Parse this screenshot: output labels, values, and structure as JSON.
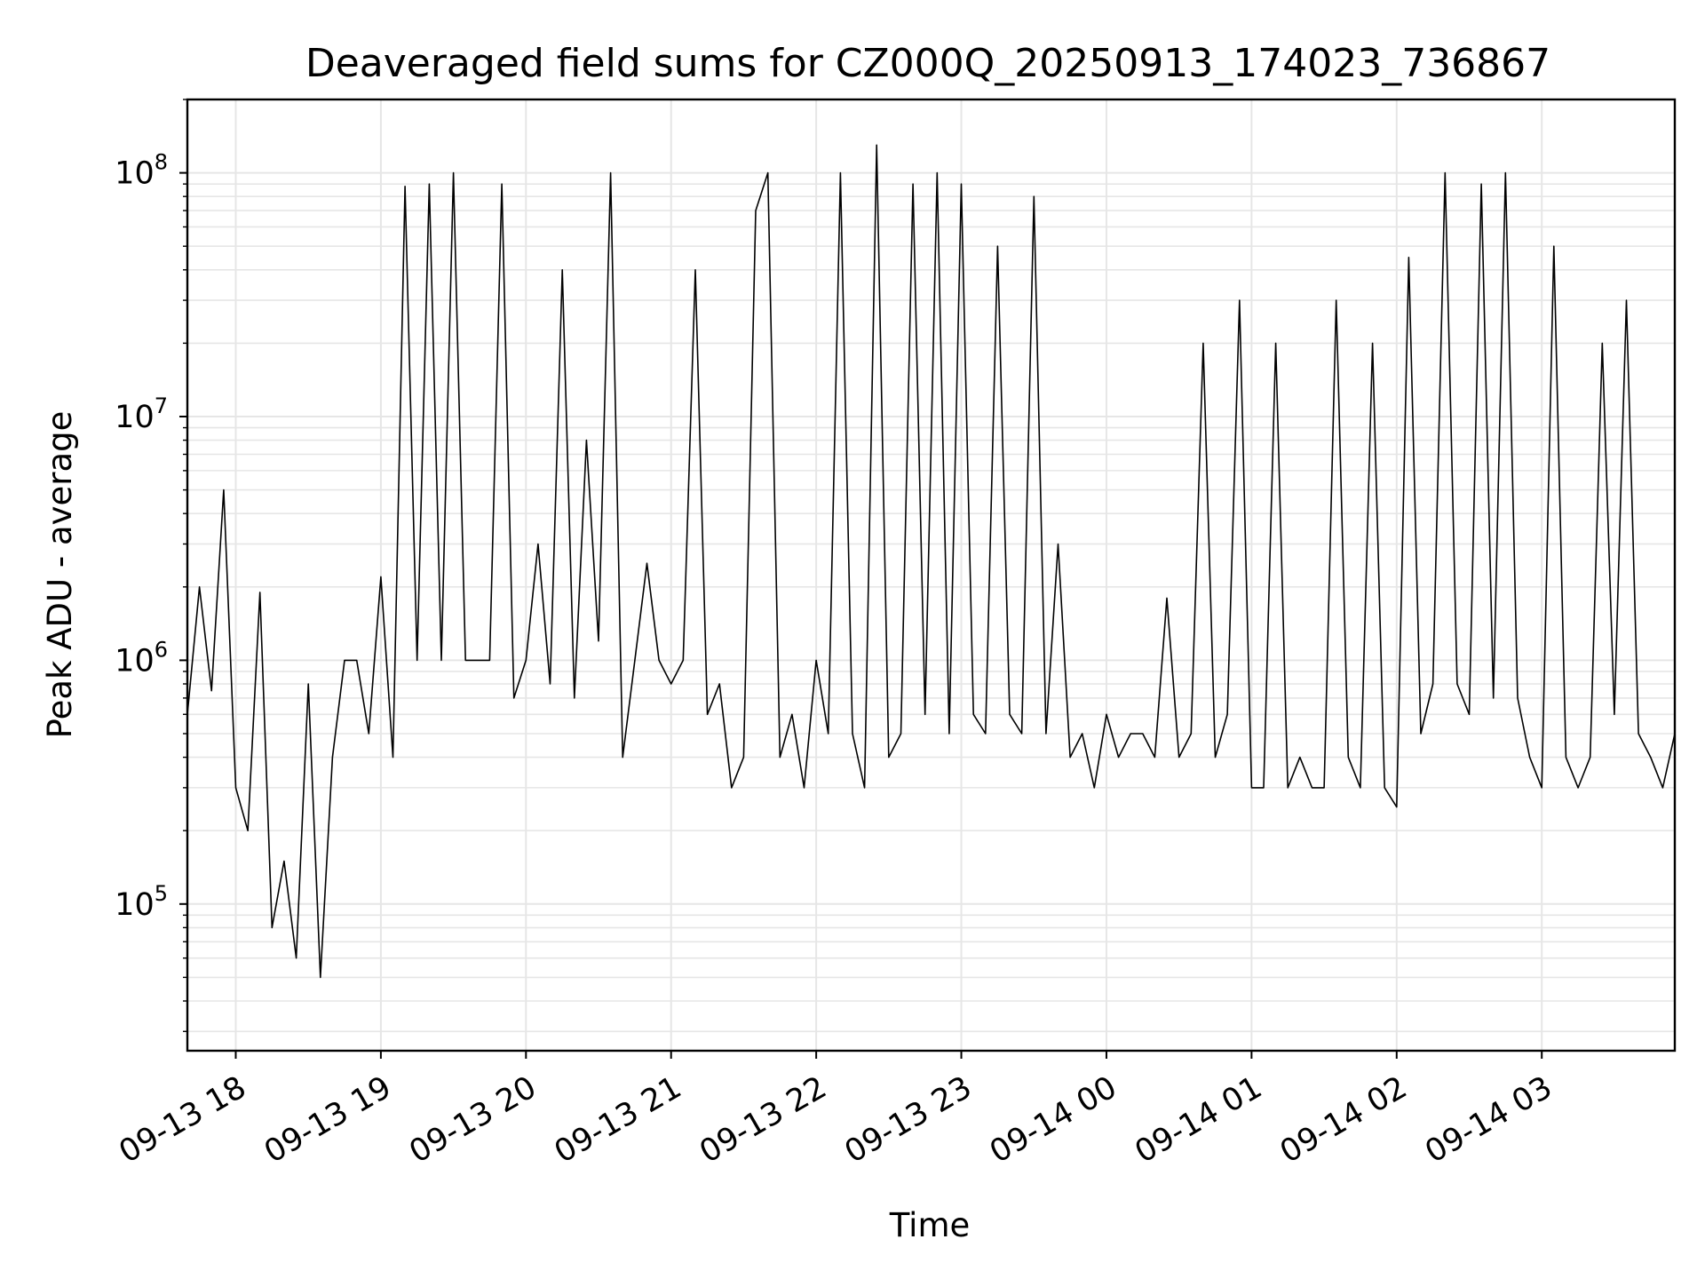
{
  "chart_data": {
    "type": "line",
    "title": "Deaveraged field sums for CZ000Q_20250913_174023_736867",
    "xlabel": "Time",
    "ylabel": "Peak ADU - average",
    "yscale": "log",
    "ylim": [
      25000,
      200000000
    ],
    "xlim": [
      "2025-09-13 17:40",
      "2025-09-14 03:55"
    ],
    "grid": true,
    "line_color": "#000000",
    "grid_color": "#e6e6e6",
    "x_ticks": [
      {
        "value": "2025-09-13 18:00",
        "label": "09-13 18"
      },
      {
        "value": "2025-09-13 19:00",
        "label": "09-13 19"
      },
      {
        "value": "2025-09-13 20:00",
        "label": "09-13 20"
      },
      {
        "value": "2025-09-13 21:00",
        "label": "09-13 21"
      },
      {
        "value": "2025-09-13 22:00",
        "label": "09-13 22"
      },
      {
        "value": "2025-09-13 23:00",
        "label": "09-13 23"
      },
      {
        "value": "2025-09-14 00:00",
        "label": "09-14 00"
      },
      {
        "value": "2025-09-14 01:00",
        "label": "09-14 01"
      },
      {
        "value": "2025-09-14 02:00",
        "label": "09-14 02"
      },
      {
        "value": "2025-09-14 03:00",
        "label": "09-14 03"
      }
    ],
    "y_ticks": [
      {
        "value": 100000,
        "base": "10",
        "exp": "5"
      },
      {
        "value": 1000000,
        "base": "10",
        "exp": "6"
      },
      {
        "value": 10000000,
        "base": "10",
        "exp": "7"
      },
      {
        "value": 100000000,
        "base": "10",
        "exp": "8"
      }
    ],
    "series": [
      {
        "x": [
          "2025-09-13 17:40",
          "2025-09-13 17:45",
          "2025-09-13 17:50",
          "2025-09-13 17:55",
          "2025-09-13 18:00",
          "2025-09-13 18:05",
          "2025-09-13 18:10",
          "2025-09-13 18:15",
          "2025-09-13 18:20",
          "2025-09-13 18:25",
          "2025-09-13 18:30",
          "2025-09-13 18:35",
          "2025-09-13 18:40",
          "2025-09-13 18:45",
          "2025-09-13 18:50",
          "2025-09-13 18:55",
          "2025-09-13 19:00",
          "2025-09-13 19:05",
          "2025-09-13 19:10",
          "2025-09-13 19:15",
          "2025-09-13 19:20",
          "2025-09-13 19:25",
          "2025-09-13 19:30",
          "2025-09-13 19:35",
          "2025-09-13 19:40",
          "2025-09-13 19:45",
          "2025-09-13 19:50",
          "2025-09-13 19:55",
          "2025-09-13 20:00",
          "2025-09-13 20:05",
          "2025-09-13 20:10",
          "2025-09-13 20:15",
          "2025-09-13 20:20",
          "2025-09-13 20:25",
          "2025-09-13 20:30",
          "2025-09-13 20:35",
          "2025-09-13 20:40",
          "2025-09-13 20:45",
          "2025-09-13 20:50",
          "2025-09-13 20:55",
          "2025-09-13 21:00",
          "2025-09-13 21:05",
          "2025-09-13 21:10",
          "2025-09-13 21:15",
          "2025-09-13 21:20",
          "2025-09-13 21:25",
          "2025-09-13 21:30",
          "2025-09-13 21:35",
          "2025-09-13 21:40",
          "2025-09-13 21:45",
          "2025-09-13 21:50",
          "2025-09-13 21:55",
          "2025-09-13 22:00",
          "2025-09-13 22:05",
          "2025-09-13 22:10",
          "2025-09-13 22:15",
          "2025-09-13 22:20",
          "2025-09-13 22:25",
          "2025-09-13 22:30",
          "2025-09-13 22:35",
          "2025-09-13 22:40",
          "2025-09-13 22:45",
          "2025-09-13 22:50",
          "2025-09-13 22:55",
          "2025-09-13 23:00",
          "2025-09-13 23:05",
          "2025-09-13 23:10",
          "2025-09-13 23:15",
          "2025-09-13 23:20",
          "2025-09-13 23:25",
          "2025-09-13 23:30",
          "2025-09-13 23:35",
          "2025-09-13 23:40",
          "2025-09-13 23:45",
          "2025-09-13 23:50",
          "2025-09-13 23:55",
          "2025-09-14 00:00",
          "2025-09-14 00:05",
          "2025-09-14 00:10",
          "2025-09-14 00:15",
          "2025-09-14 00:20",
          "2025-09-14 00:25",
          "2025-09-14 00:30",
          "2025-09-14 00:35",
          "2025-09-14 00:40",
          "2025-09-14 00:45",
          "2025-09-14 00:50",
          "2025-09-14 00:55",
          "2025-09-14 01:00",
          "2025-09-14 01:05",
          "2025-09-14 01:10",
          "2025-09-14 01:15",
          "2025-09-14 01:20",
          "2025-09-14 01:25",
          "2025-09-14 01:30",
          "2025-09-14 01:35",
          "2025-09-14 01:40",
          "2025-09-14 01:45",
          "2025-09-14 01:50",
          "2025-09-14 01:55",
          "2025-09-14 02:00",
          "2025-09-14 02:05",
          "2025-09-14 02:10",
          "2025-09-14 02:15",
          "2025-09-14 02:20",
          "2025-09-14 02:25",
          "2025-09-14 02:30",
          "2025-09-14 02:35",
          "2025-09-14 02:40",
          "2025-09-14 02:45",
          "2025-09-14 02:50",
          "2025-09-14 02:55",
          "2025-09-14 03:00",
          "2025-09-14 03:05",
          "2025-09-14 03:10",
          "2025-09-14 03:15",
          "2025-09-14 03:20",
          "2025-09-14 03:25",
          "2025-09-14 03:30",
          "2025-09-14 03:35",
          "2025-09-14 03:40",
          "2025-09-14 03:45",
          "2025-09-14 03:50",
          "2025-09-14 03:55"
        ],
        "y": [
          600000,
          2000000,
          750000,
          5000000,
          300000,
          200000,
          1900000,
          80000,
          150000,
          60000,
          800000,
          50000,
          400000,
          1000000,
          1000000,
          500000,
          2200000,
          400000,
          88000000,
          1000000,
          90000000,
          1000000,
          100000000,
          1000000,
          1000000,
          1000000,
          90000000,
          700000,
          1000000,
          3000000,
          800000,
          40000000,
          700000,
          8000000,
          1200000,
          100000000,
          400000,
          1000000,
          2500000,
          1000000,
          800000,
          1000000,
          40000000,
          600000,
          800000,
          300000,
          400000,
          70000000,
          100000000,
          400000,
          600000,
          300000,
          1000000,
          500000,
          100000000,
          500000,
          300000,
          130000000,
          400000,
          500000,
          90000000,
          600000,
          100000000,
          500000,
          90000000,
          600000,
          500000,
          50000000,
          600000,
          500000,
          80000000,
          500000,
          3000000,
          400000,
          500000,
          300000,
          600000,
          400000,
          500000,
          500000,
          400000,
          1800000,
          400000,
          500000,
          20000000,
          400000,
          600000,
          30000000,
          300000,
          300000,
          20000000,
          300000,
          400000,
          300000,
          300000,
          30000000,
          400000,
          300000,
          20000000,
          300000,
          250000,
          45000000,
          500000,
          800000,
          100000000,
          800000,
          600000,
          90000000,
          700000,
          100000000,
          700000,
          400000,
          300000,
          50000000,
          400000,
          300000,
          400000,
          20000000,
          600000,
          30000000,
          500000,
          400000,
          300000,
          500000
        ]
      }
    ]
  }
}
